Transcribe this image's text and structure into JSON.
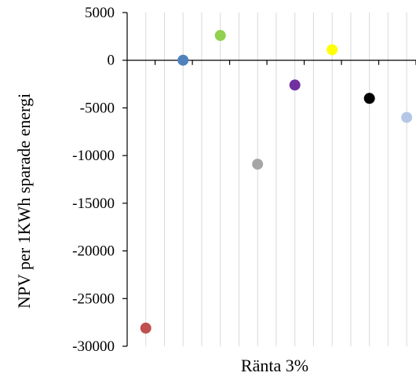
{
  "chart_data": {
    "type": "scatter",
    "title": "",
    "xlabel": "Ränta 3%",
    "ylabel": "NPV per 1KWh sparade energi",
    "ylim": [
      -30000,
      5000
    ],
    "ytick_step": 5000,
    "y_ticks": [
      "5000",
      "0",
      "-5000",
      "-10000",
      "-15000",
      "-20000",
      "-25000",
      "-30000"
    ],
    "x_categories": 15,
    "grid": "vertical-only",
    "legend": "none",
    "points": [
      {
        "x": 1,
        "y": -28100,
        "color": "#c0504d"
      },
      {
        "x": 3,
        "y": 0,
        "color": "#4f81bd"
      },
      {
        "x": 5,
        "y": 2600,
        "color": "#92d050"
      },
      {
        "x": 7,
        "y": -10900,
        "color": "#a6a6a6"
      },
      {
        "x": 9,
        "y": -2600,
        "color": "#7030a0"
      },
      {
        "x": 11,
        "y": 1100,
        "color": "#ffff00"
      },
      {
        "x": 13,
        "y": -4000,
        "color": "#000000"
      },
      {
        "x": 15,
        "y": -6000,
        "color": "#b4c7e7"
      }
    ],
    "gridline_color": "#d9d9d9",
    "axis_color": "#000000"
  }
}
